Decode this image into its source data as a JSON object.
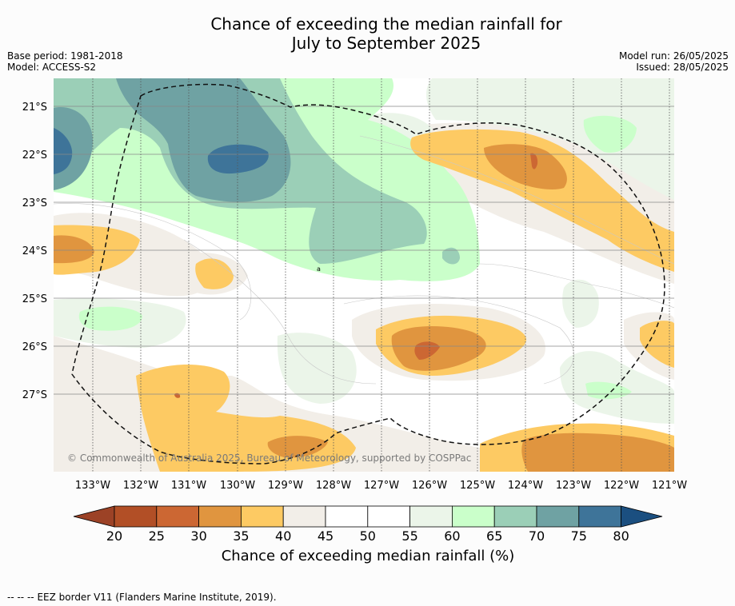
{
  "title": {
    "line1": "Chance of exceeding the median rainfall for",
    "line2": "July to September 2025"
  },
  "meta": {
    "base_period": "Base period: 1981-2018",
    "model": "Model: ACCESS-S2",
    "model_run": "Model run: 26/05/2025",
    "issued": "Issued: 28/05/2025"
  },
  "map": {
    "latitudes": [
      "21°S",
      "22°S",
      "23°S",
      "24°S",
      "25°S",
      "26°S",
      "27°S"
    ],
    "longitudes": [
      "133°W",
      "132°W",
      "131°W",
      "130°W",
      "129°W",
      "128°W",
      "127°W",
      "126°W",
      "125°W",
      "124°W",
      "123°W",
      "122°W",
      "121°W"
    ],
    "copyright": "© Commonwealth of Australia 2025, Bureau of Meteorology, supported by COSPPac",
    "contour_label": "a"
  },
  "colorbar": {
    "ticks": [
      "20",
      "25",
      "30",
      "35",
      "40",
      "45",
      "50",
      "55",
      "60",
      "65",
      "70",
      "75",
      "80"
    ],
    "colors": [
      "#9c4226",
      "#b24f26",
      "#cc6733",
      "#e0953f",
      "#fdca63",
      "#f2eee8",
      "#ffffff",
      "#ffffff",
      "#ebf5e9",
      "#caffca",
      "#9bcfb7",
      "#6fa2a3",
      "#3e7499",
      "#1b4f80"
    ],
    "title": "Chance of exceeding median rainfall (%)"
  },
  "footer": {
    "legend_symbol": "-- -- --",
    "legend_text": "EEZ border V11 (Flanders Marine Institute, 2019)."
  }
}
